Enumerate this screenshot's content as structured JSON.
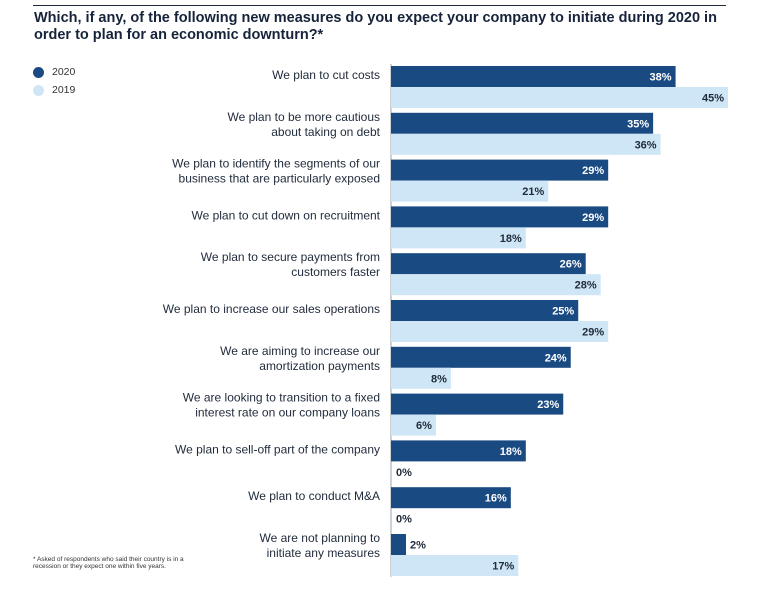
{
  "title": "Which, if any, of the following new measures do you expect your company to initiate during 2020 in order to plan for an economic downturn?*",
  "footnote": "* Asked of respondents who said their country is in a recession or they expect one within five years.",
  "colors": {
    "series_2020": "#1a4a82",
    "series_2019": "#cfe6f7",
    "text": "#1f2a3a"
  },
  "chart_data": {
    "type": "bar",
    "orientation": "horizontal",
    "title": "Which, if any, of the following new measures do you expect your company to initiate during 2020 in order to plan for an economic downturn?*",
    "categories": [
      [
        "We plan to cut costs"
      ],
      [
        "We plan to be more cautious",
        "about taking on debt"
      ],
      [
        "We plan to identify the segments of our",
        "business that are particularly exposed"
      ],
      [
        "We plan to cut down on recruitment"
      ],
      [
        "We plan to secure payments from",
        "customers faster"
      ],
      [
        "We plan to increase our sales operations"
      ],
      [
        "We are aiming to increase our",
        "amortization payments"
      ],
      [
        "We are looking to transition to a fixed",
        "interest rate on our company loans"
      ],
      [
        "We plan to sell-off part of the company"
      ],
      [
        "We plan to conduct M&A"
      ],
      [
        "We are not planning to",
        "initiate any measures"
      ]
    ],
    "series": [
      {
        "name": "2020",
        "values": [
          38,
          35,
          29,
          29,
          26,
          25,
          24,
          23,
          18,
          16,
          2
        ]
      },
      {
        "name": "2019",
        "values": [
          45,
          36,
          21,
          18,
          28,
          29,
          8,
          6,
          0,
          0,
          17
        ]
      }
    ],
    "value_suffix": "%",
    "xlim": [
      0,
      45
    ],
    "legend_position": "top-left",
    "grid": false
  }
}
